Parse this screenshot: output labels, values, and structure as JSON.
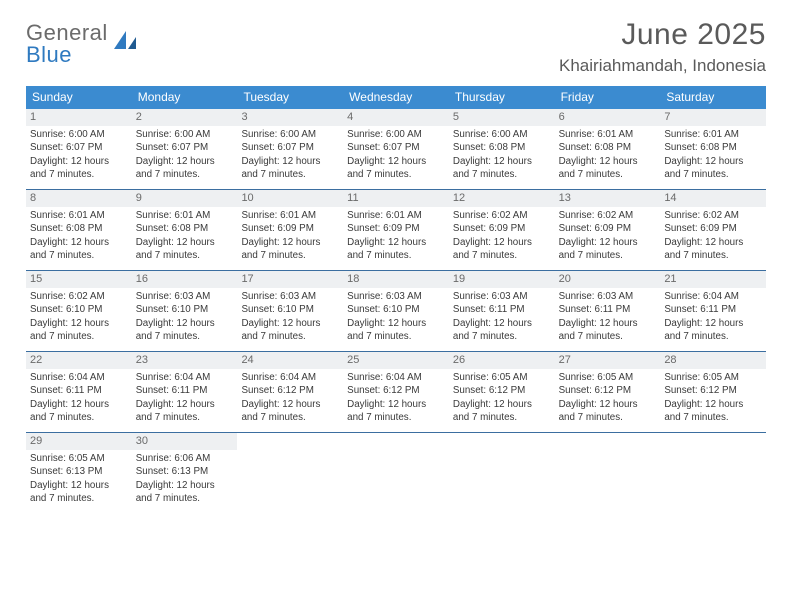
{
  "logo": {
    "top": "General",
    "bottom": "Blue"
  },
  "title": "June 2025",
  "location": "Khairiahmandah, Indonesia",
  "colors": {
    "header_bg": "#3b8bd0",
    "row_border": "#3b6ea0",
    "daynum_bg": "#eef0f2",
    "logo_gray": "#6b6b6b",
    "logo_blue": "#2f7ac0"
  },
  "dow": [
    "Sunday",
    "Monday",
    "Tuesday",
    "Wednesday",
    "Thursday",
    "Friday",
    "Saturday"
  ],
  "weeks": [
    [
      {
        "n": "1",
        "sr": "Sunrise: 6:00 AM",
        "ss": "Sunset: 6:07 PM",
        "d1": "Daylight: 12 hours",
        "d2": "and 7 minutes."
      },
      {
        "n": "2",
        "sr": "Sunrise: 6:00 AM",
        "ss": "Sunset: 6:07 PM",
        "d1": "Daylight: 12 hours",
        "d2": "and 7 minutes."
      },
      {
        "n": "3",
        "sr": "Sunrise: 6:00 AM",
        "ss": "Sunset: 6:07 PM",
        "d1": "Daylight: 12 hours",
        "d2": "and 7 minutes."
      },
      {
        "n": "4",
        "sr": "Sunrise: 6:00 AM",
        "ss": "Sunset: 6:07 PM",
        "d1": "Daylight: 12 hours",
        "d2": "and 7 minutes."
      },
      {
        "n": "5",
        "sr": "Sunrise: 6:00 AM",
        "ss": "Sunset: 6:08 PM",
        "d1": "Daylight: 12 hours",
        "d2": "and 7 minutes."
      },
      {
        "n": "6",
        "sr": "Sunrise: 6:01 AM",
        "ss": "Sunset: 6:08 PM",
        "d1": "Daylight: 12 hours",
        "d2": "and 7 minutes."
      },
      {
        "n": "7",
        "sr": "Sunrise: 6:01 AM",
        "ss": "Sunset: 6:08 PM",
        "d1": "Daylight: 12 hours",
        "d2": "and 7 minutes."
      }
    ],
    [
      {
        "n": "8",
        "sr": "Sunrise: 6:01 AM",
        "ss": "Sunset: 6:08 PM",
        "d1": "Daylight: 12 hours",
        "d2": "and 7 minutes."
      },
      {
        "n": "9",
        "sr": "Sunrise: 6:01 AM",
        "ss": "Sunset: 6:08 PM",
        "d1": "Daylight: 12 hours",
        "d2": "and 7 minutes."
      },
      {
        "n": "10",
        "sr": "Sunrise: 6:01 AM",
        "ss": "Sunset: 6:09 PM",
        "d1": "Daylight: 12 hours",
        "d2": "and 7 minutes."
      },
      {
        "n": "11",
        "sr": "Sunrise: 6:01 AM",
        "ss": "Sunset: 6:09 PM",
        "d1": "Daylight: 12 hours",
        "d2": "and 7 minutes."
      },
      {
        "n": "12",
        "sr": "Sunrise: 6:02 AM",
        "ss": "Sunset: 6:09 PM",
        "d1": "Daylight: 12 hours",
        "d2": "and 7 minutes."
      },
      {
        "n": "13",
        "sr": "Sunrise: 6:02 AM",
        "ss": "Sunset: 6:09 PM",
        "d1": "Daylight: 12 hours",
        "d2": "and 7 minutes."
      },
      {
        "n": "14",
        "sr": "Sunrise: 6:02 AM",
        "ss": "Sunset: 6:09 PM",
        "d1": "Daylight: 12 hours",
        "d2": "and 7 minutes."
      }
    ],
    [
      {
        "n": "15",
        "sr": "Sunrise: 6:02 AM",
        "ss": "Sunset: 6:10 PM",
        "d1": "Daylight: 12 hours",
        "d2": "and 7 minutes."
      },
      {
        "n": "16",
        "sr": "Sunrise: 6:03 AM",
        "ss": "Sunset: 6:10 PM",
        "d1": "Daylight: 12 hours",
        "d2": "and 7 minutes."
      },
      {
        "n": "17",
        "sr": "Sunrise: 6:03 AM",
        "ss": "Sunset: 6:10 PM",
        "d1": "Daylight: 12 hours",
        "d2": "and 7 minutes."
      },
      {
        "n": "18",
        "sr": "Sunrise: 6:03 AM",
        "ss": "Sunset: 6:10 PM",
        "d1": "Daylight: 12 hours",
        "d2": "and 7 minutes."
      },
      {
        "n": "19",
        "sr": "Sunrise: 6:03 AM",
        "ss": "Sunset: 6:11 PM",
        "d1": "Daylight: 12 hours",
        "d2": "and 7 minutes."
      },
      {
        "n": "20",
        "sr": "Sunrise: 6:03 AM",
        "ss": "Sunset: 6:11 PM",
        "d1": "Daylight: 12 hours",
        "d2": "and 7 minutes."
      },
      {
        "n": "21",
        "sr": "Sunrise: 6:04 AM",
        "ss": "Sunset: 6:11 PM",
        "d1": "Daylight: 12 hours",
        "d2": "and 7 minutes."
      }
    ],
    [
      {
        "n": "22",
        "sr": "Sunrise: 6:04 AM",
        "ss": "Sunset: 6:11 PM",
        "d1": "Daylight: 12 hours",
        "d2": "and 7 minutes."
      },
      {
        "n": "23",
        "sr": "Sunrise: 6:04 AM",
        "ss": "Sunset: 6:11 PM",
        "d1": "Daylight: 12 hours",
        "d2": "and 7 minutes."
      },
      {
        "n": "24",
        "sr": "Sunrise: 6:04 AM",
        "ss": "Sunset: 6:12 PM",
        "d1": "Daylight: 12 hours",
        "d2": "and 7 minutes."
      },
      {
        "n": "25",
        "sr": "Sunrise: 6:04 AM",
        "ss": "Sunset: 6:12 PM",
        "d1": "Daylight: 12 hours",
        "d2": "and 7 minutes."
      },
      {
        "n": "26",
        "sr": "Sunrise: 6:05 AM",
        "ss": "Sunset: 6:12 PM",
        "d1": "Daylight: 12 hours",
        "d2": "and 7 minutes."
      },
      {
        "n": "27",
        "sr": "Sunrise: 6:05 AM",
        "ss": "Sunset: 6:12 PM",
        "d1": "Daylight: 12 hours",
        "d2": "and 7 minutes."
      },
      {
        "n": "28",
        "sr": "Sunrise: 6:05 AM",
        "ss": "Sunset: 6:12 PM",
        "d1": "Daylight: 12 hours",
        "d2": "and 7 minutes."
      }
    ],
    [
      {
        "n": "29",
        "sr": "Sunrise: 6:05 AM",
        "ss": "Sunset: 6:13 PM",
        "d1": "Daylight: 12 hours",
        "d2": "and 7 minutes."
      },
      {
        "n": "30",
        "sr": "Sunrise: 6:06 AM",
        "ss": "Sunset: 6:13 PM",
        "d1": "Daylight: 12 hours",
        "d2": "and 7 minutes."
      },
      null,
      null,
      null,
      null,
      null
    ]
  ]
}
